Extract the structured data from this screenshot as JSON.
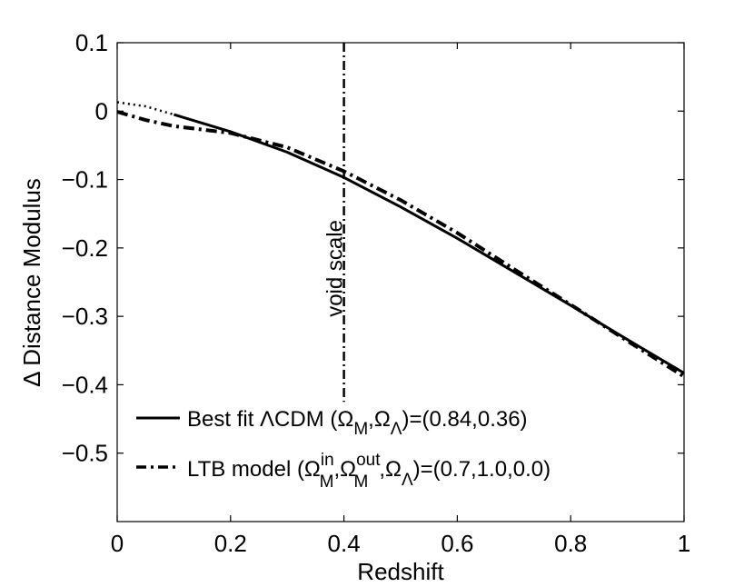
{
  "chart_data": {
    "type": "line",
    "xlabel": "Redshift",
    "ylabel": "Δ Distance Modulus",
    "xlim": [
      0,
      1
    ],
    "ylim": [
      -0.6,
      0.1
    ],
    "xticks": [
      "0",
      "0.2",
      "0.4",
      "0.6",
      "0.8",
      "1"
    ],
    "yticks": [
      "0.1",
      "0",
      "−0.1",
      "−0.2",
      "−0.3",
      "−0.4",
      "−0.5"
    ],
    "grid": false,
    "annotation": {
      "text": "void scale",
      "x": 0.4
    },
    "legend": {
      "placement": "bottom-left",
      "entries": [
        {
          "style": "solid",
          "text": "Best fit ΛCDM (Ω_M,Ω_Λ)=(0.84,0.36)"
        },
        {
          "style": "dash-dot",
          "text": "LTB model (Ω_M^in,Ω_M^out,Ω_Λ)=(0.7,1.0,0.0)"
        }
      ]
    },
    "series": [
      {
        "style": "solid",
        "x": [
          0.1,
          0.2,
          0.3,
          0.4,
          0.5,
          0.6,
          0.7,
          0.8,
          0.9,
          1.0
        ],
        "y": [
          -0.005,
          -0.03,
          -0.06,
          -0.097,
          -0.14,
          -0.186,
          -0.235,
          -0.284,
          -0.334,
          -0.383
        ]
      },
      {
        "style": "dotted",
        "x": [
          0.0,
          0.05,
          0.1
        ],
        "y": [
          0.013,
          0.007,
          -0.005
        ]
      },
      {
        "style": "dash-dot",
        "x": [
          0.0,
          0.05,
          0.1,
          0.15,
          0.2,
          0.3,
          0.4,
          0.5,
          0.6,
          0.7,
          0.8,
          0.9,
          1.0
        ],
        "y": [
          -0.001,
          -0.013,
          -0.022,
          -0.027,
          -0.032,
          -0.053,
          -0.088,
          -0.13,
          -0.178,
          -0.231,
          -0.283,
          -0.336,
          -0.388
        ]
      }
    ]
  }
}
